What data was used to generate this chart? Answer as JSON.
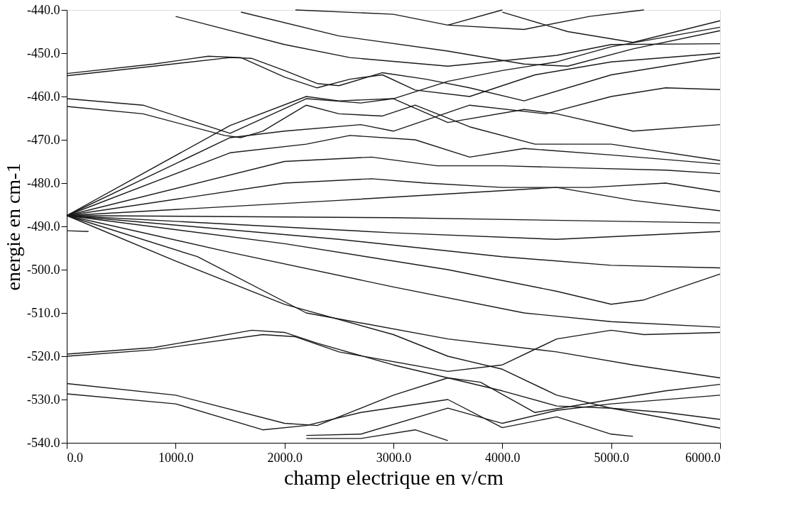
{
  "chart_data": {
    "type": "line",
    "xlabel": "champ electrique en v/cm",
    "ylabel": "energie en cm-1",
    "xlim": [
      0,
      6000
    ],
    "ylim": [
      -540,
      -440
    ],
    "xticks": [
      {
        "value": 0,
        "label": "0.0"
      },
      {
        "value": 1000,
        "label": "1000.0"
      },
      {
        "value": 2000,
        "label": "2000.0"
      },
      {
        "value": 3000,
        "label": "3000.0"
      },
      {
        "value": 4000,
        "label": "4000.0"
      },
      {
        "value": 5000,
        "label": "5000.0"
      },
      {
        "value": 6000,
        "label": "6000.0"
      }
    ],
    "yticks": [
      {
        "value": -540,
        "label": "-540.0"
      },
      {
        "value": -530,
        "label": "-530.0"
      },
      {
        "value": -520,
        "label": "-520.0"
      },
      {
        "value": -510,
        "label": "-510.0"
      },
      {
        "value": -500,
        "label": "-500.0"
      },
      {
        "value": -490,
        "label": "-490.0"
      },
      {
        "value": -480,
        "label": "-480.0"
      },
      {
        "value": -470,
        "label": "-470.0"
      },
      {
        "value": -460,
        "label": "-460.0"
      },
      {
        "value": -450,
        "label": "-450.0"
      },
      {
        "value": -440,
        "label": "-440.0"
      }
    ],
    "grid": false,
    "legend": false,
    "marker": "none",
    "line_style": "solid",
    "series": [
      {
        "color": "#1a1a1a",
        "x": [
          0,
          800,
          1300,
          1600,
          2000,
          2300,
          2600,
          2900,
          3200,
          3700,
          4300,
          5000,
          6000
        ],
        "values": [
          -454.7,
          -452.5,
          -450.7,
          -451,
          -455.5,
          -458,
          -456,
          -455,
          -458.5,
          -460,
          -455,
          -452,
          -450
        ]
      },
      {
        "color": "#1a1a1a",
        "x": [
          0,
          800,
          1500,
          1700,
          2000,
          2300,
          2500,
          2900,
          3300,
          3700,
          4200,
          5000,
          6000
        ],
        "values": [
          -455.2,
          -453,
          -451,
          -451.2,
          -454,
          -457,
          -457.5,
          -454.5,
          -456,
          -458,
          -461,
          -455,
          -450.9
        ]
      },
      {
        "color": "#1a1a1a",
        "x": [
          0,
          700,
          1500,
          2200,
          2700,
          3000,
          3500,
          4200,
          4500,
          5200,
          6000
        ],
        "values": [
          -460.5,
          -462,
          -468.5,
          -460.5,
          -461.5,
          -460.5,
          -466,
          -463,
          -464,
          -468,
          -466.5
        ]
      },
      {
        "color": "#1a1a1a",
        "x": [
          0,
          700,
          1450,
          1600,
          1800,
          2200,
          2500,
          2900,
          3200,
          3700,
          4300,
          5000,
          6000
        ],
        "values": [
          -462.3,
          -464,
          -469,
          -469.5,
          -468,
          -462,
          -464,
          -464.5,
          -462,
          -467,
          -471,
          -471,
          -474.8
        ]
      },
      {
        "color": "#1a1a1a",
        "x": [
          0,
          1500,
          2200,
          2500,
          3000,
          3500,
          4000,
          4500,
          5000,
          6000
        ],
        "values": [
          -487.5,
          -466.7,
          -460,
          -461,
          -460.5,
          -456.5,
          -454,
          -452,
          -448.5,
          -444
        ]
      },
      {
        "color": "#1a1a1a",
        "x": [
          0,
          1500,
          2000,
          2700,
          3000,
          3700,
          4400,
          5000,
          5500,
          6000
        ],
        "values": [
          -487.5,
          -469.5,
          -468,
          -466.5,
          -468,
          -462,
          -464,
          -460,
          -458,
          -458.4
        ]
      },
      {
        "color": "#1a1a1a",
        "x": [
          0,
          1500,
          2200,
          2600,
          3200,
          3700,
          4200,
          5000,
          6000
        ],
        "values": [
          -487.5,
          -473,
          -471,
          -469,
          -470,
          -474,
          -472,
          -473.5,
          -475.6
        ]
      },
      {
        "color": "#1a1a1a",
        "x": [
          0,
          2000,
          2800,
          3400,
          4000,
          4700,
          5500,
          6000
        ],
        "values": [
          -487.5,
          -475,
          -474,
          -476,
          -476,
          -476.5,
          -477,
          -477.8
        ]
      },
      {
        "color": "#1a1a1a",
        "x": [
          0,
          2000,
          2800,
          3300,
          4000,
          4800,
          5500,
          6000
        ],
        "values": [
          -487.5,
          -480,
          -479,
          -480,
          -481,
          -481,
          -480,
          -482
        ]
      },
      {
        "color": "#1a1a1a",
        "x": [
          0,
          2500,
          3500,
          4500,
          5200,
          6000
        ],
        "values": [
          -487.5,
          -484,
          -482.5,
          -481,
          -484,
          -486.4
        ]
      },
      {
        "color": "#1a1a1a",
        "x": [
          0,
          3000,
          6000
        ],
        "values": [
          -487.5,
          -488,
          -489.2
        ]
      },
      {
        "color": "#1a1a1a",
        "x": [
          0,
          3000,
          4500,
          6000
        ],
        "values": [
          -487.5,
          -491.5,
          -493,
          -491.2
        ]
      },
      {
        "color": "#1a1a1a",
        "x": [
          0,
          2500,
          4000,
          5000,
          6000
        ],
        "values": [
          -487.5,
          -493,
          -497,
          -499,
          -499.6
        ]
      },
      {
        "color": "#1a1a1a",
        "x": [
          0,
          2000,
          3500,
          4500,
          5000,
          5300,
          6000
        ],
        "values": [
          -487.5,
          -494,
          -500,
          -505,
          -508,
          -507,
          -501
        ]
      },
      {
        "color": "#1a1a1a",
        "x": [
          0,
          1500,
          3000,
          4200,
          5000,
          6000
        ],
        "values": [
          -487.5,
          -496,
          -504,
          -510,
          -512,
          -513.3
        ]
      },
      {
        "color": "#1a1a1a",
        "x": [
          0,
          1200,
          2200,
          3500,
          4500,
          5200,
          6000
        ],
        "values": [
          -487.5,
          -497,
          -510,
          -516,
          -519,
          -522,
          -525
        ]
      },
      {
        "color": "#1a1a1a",
        "x": [
          0,
          1000,
          2000,
          3000,
          3500,
          4000,
          4500,
          5000,
          6000
        ],
        "values": [
          -487.5,
          -498,
          -508,
          -515,
          -520,
          -523,
          -529,
          -532,
          -536.6
        ]
      },
      {
        "color": "#1a1a1a",
        "x": [
          0,
          200
        ],
        "values": [
          -491,
          -491.2
        ]
      },
      {
        "color": "#1a1a1a",
        "x": [
          0,
          800,
          1700,
          2000,
          2300,
          3000,
          3500,
          4000,
          4500,
          5000,
          5500,
          6000
        ],
        "values": [
          -519.5,
          -518,
          -514,
          -514.5,
          -517,
          -522,
          -525,
          -528,
          -531.5,
          -532,
          -533,
          -534.6
        ]
      },
      {
        "color": "#1a1a1a",
        "x": [
          0,
          800,
          1800,
          2100,
          2500,
          3500,
          4000,
          4500,
          5000,
          5300,
          6000
        ],
        "values": [
          -520,
          -518.5,
          -515,
          -515.5,
          -519,
          -523.5,
          -522,
          -516,
          -514,
          -515,
          -514.5
        ]
      },
      {
        "color": "#1a1a1a",
        "x": [
          0,
          1000,
          2000,
          2300,
          3000,
          3500,
          3800,
          4300,
          5000,
          5500,
          6000
        ],
        "values": [
          -526.3,
          -529,
          -535.5,
          -536,
          -529,
          -525,
          -526,
          -533,
          -530,
          -528,
          -526.5
        ]
      },
      {
        "color": "#1a1a1a",
        "x": [
          0,
          1000,
          1800,
          2200,
          2700,
          3500,
          4000,
          4500,
          5000,
          5200
        ],
        "values": [
          -528.7,
          -531,
          -537,
          -536,
          -533,
          -530,
          -536.5,
          -534,
          -538,
          -538.5
        ]
      },
      {
        "color": "#1a1a1a",
        "x": [
          2200,
          2700,
          3500,
          4000,
          4500,
          5000,
          6000
        ],
        "values": [
          -538.3,
          -538,
          -532,
          -535.5,
          -532.5,
          -531,
          -529
        ]
      },
      {
        "color": "#1a1a1a",
        "x": [
          2200,
          2700,
          3200,
          3500
        ],
        "values": [
          -539,
          -539,
          -537,
          -539.5
        ]
      },
      {
        "color": "#1a1a1a",
        "x": [
          1000,
          2000,
          2600,
          3500,
          4500,
          5000,
          6000
        ],
        "values": [
          -441.5,
          -448,
          -451,
          -453,
          -450.5,
          -448,
          -447.8
        ]
      },
      {
        "color": "#1a1a1a",
        "x": [
          1600,
          2500,
          3500,
          4200,
          4600,
          5200,
          6000
        ],
        "values": [
          -440.5,
          -446,
          -449.5,
          -452.5,
          -453,
          -449,
          -444.8
        ]
      },
      {
        "color": "#1a1a1a",
        "x": [
          2100,
          3000,
          3500,
          4000
        ],
        "values": [
          -440,
          -441,
          -443.5,
          -440
        ]
      },
      {
        "color": "#1a1a1a",
        "x": [
          3500,
          4200,
          4800,
          5300
        ],
        "values": [
          -443.5,
          -444.5,
          -441.5,
          -440
        ]
      },
      {
        "color": "#1a1a1a",
        "x": [
          4000,
          4600,
          5200,
          6000
        ],
        "values": [
          -440.5,
          -445,
          -447.5,
          -442.5
        ]
      }
    ]
  }
}
